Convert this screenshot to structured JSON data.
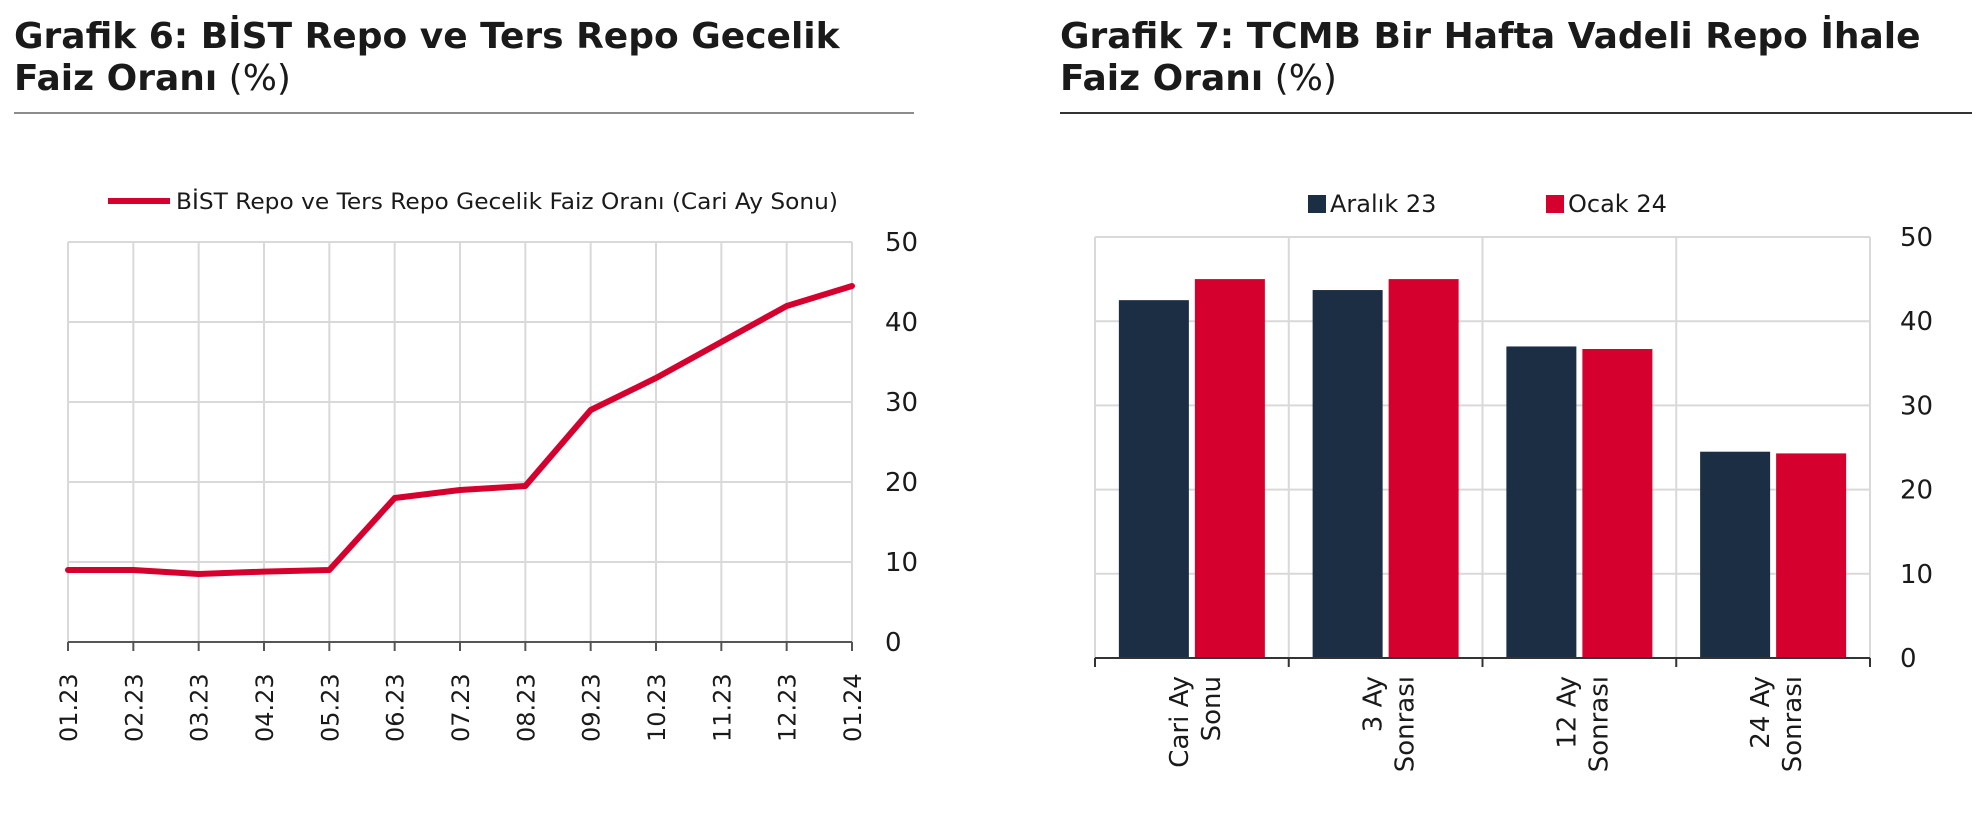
{
  "chart6": {
    "title_main": "Grafik 6:  BİST Repo ve Ters Repo Gecelik Faiz Oranı",
    "title_unit": " (%)",
    "chart_data": {
      "type": "line",
      "x": [
        "01.23",
        "02.23",
        "03.23",
        "04.23",
        "05.23",
        "06.23",
        "07.23",
        "08.23",
        "09.23",
        "10.23",
        "11.23",
        "12.23",
        "01.24"
      ],
      "series": [
        {
          "name": "BİST Repo ve Ters Repo Gecelik Faiz Oranı (Cari Ay Sonu)",
          "values": [
            9.0,
            9.0,
            8.5,
            8.8,
            9.0,
            18.0,
            19.0,
            19.5,
            29.0,
            33.0,
            37.5,
            42.0,
            44.5
          ]
        }
      ],
      "ylim": [
        0,
        50
      ],
      "yticks": [
        "50",
        "40",
        "30",
        "20",
        "10",
        "0"
      ],
      "grid": true,
      "legend": "top",
      "y_axis_side": "right",
      "color": "#d6002e"
    }
  },
  "chart7": {
    "title_main": "Grafik 7: TCMB Bir Hafta Vadeli Repo İhale Faiz Oranı",
    "title_unit": " (%)",
    "chart_data": {
      "type": "bar",
      "categories": [
        [
          "Cari Ay",
          "Sonu"
        ],
        [
          "3 Ay",
          "Sonrası"
        ],
        [
          "12 Ay",
          "Sonrası"
        ],
        [
          "24 Ay",
          "Sonrası"
        ]
      ],
      "series": [
        {
          "name": "Aralık 23",
          "values": [
            42.5,
            43.7,
            37.0,
            24.5
          ],
          "color": "#1c2e44"
        },
        {
          "name": "Ocak 24",
          "values": [
            45.0,
            45.0,
            36.7,
            24.3
          ],
          "color": "#d6002e"
        }
      ],
      "ylim": [
        0,
        50
      ],
      "yticks": [
        "50",
        "40",
        "30",
        "20",
        "10",
        "0"
      ],
      "grid": true,
      "legend": "top",
      "y_axis_side": "right"
    }
  }
}
